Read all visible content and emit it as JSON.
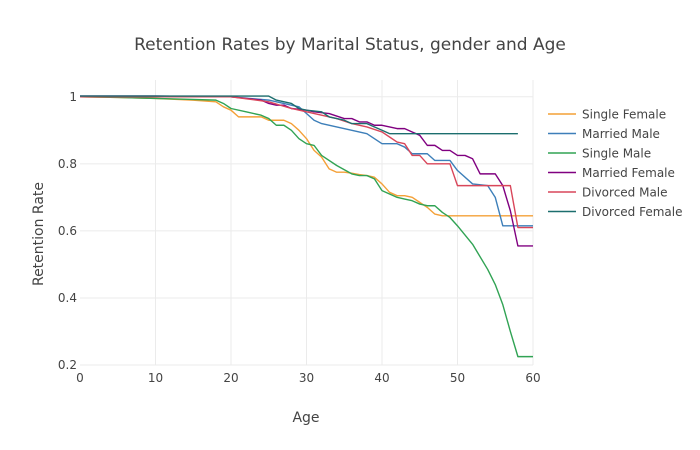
{
  "chart_data": {
    "type": "line",
    "title": "Retention Rates by Marital Status, gender and Age",
    "xlabel": "Age",
    "ylabel": "Retention Rate",
    "xlim": [
      0,
      60
    ],
    "ylim": [
      0.2,
      1.05
    ],
    "xticks": [
      0,
      10,
      20,
      30,
      40,
      50,
      60
    ],
    "yticks": [
      0.2,
      0.4,
      0.6,
      0.8,
      1
    ],
    "ytick_labels": [
      "0.2",
      "0.4",
      "0.6",
      "0.8",
      "1"
    ],
    "grid": true,
    "legend_position": "right",
    "series": [
      {
        "name": "Single Female",
        "color": "#f4a037",
        "points": [
          [
            0,
            1.0
          ],
          [
            5,
            0.998
          ],
          [
            10,
            0.995
          ],
          [
            15,
            0.99
          ],
          [
            18,
            0.985
          ],
          [
            19,
            0.97
          ],
          [
            20,
            0.96
          ],
          [
            21,
            0.94
          ],
          [
            24,
            0.94
          ],
          [
            25,
            0.93
          ],
          [
            27,
            0.93
          ],
          [
            28,
            0.92
          ],
          [
            29,
            0.9
          ],
          [
            30,
            0.875
          ],
          [
            31,
            0.84
          ],
          [
            32,
            0.82
          ],
          [
            33,
            0.785
          ],
          [
            34,
            0.775
          ],
          [
            35,
            0.775
          ],
          [
            36,
            0.772
          ],
          [
            37,
            0.768
          ],
          [
            38,
            0.765
          ],
          [
            39,
            0.76
          ],
          [
            40,
            0.74
          ],
          [
            41,
            0.715
          ],
          [
            42,
            0.705
          ],
          [
            43,
            0.705
          ],
          [
            44,
            0.7
          ],
          [
            45,
            0.685
          ],
          [
            46,
            0.67
          ],
          [
            47,
            0.65
          ],
          [
            48,
            0.645
          ],
          [
            50,
            0.645
          ],
          [
            55,
            0.645
          ],
          [
            60,
            0.645
          ]
        ]
      },
      {
        "name": "Married Male",
        "color": "#3d7fb9",
        "points": [
          [
            0,
            1.002
          ],
          [
            10,
            1.002
          ],
          [
            20,
            1.0
          ],
          [
            25,
            0.99
          ],
          [
            28,
            0.975
          ],
          [
            29,
            0.97
          ],
          [
            30,
            0.95
          ],
          [
            31,
            0.93
          ],
          [
            32,
            0.92
          ],
          [
            34,
            0.91
          ],
          [
            36,
            0.9
          ],
          [
            38,
            0.89
          ],
          [
            39,
            0.875
          ],
          [
            40,
            0.86
          ],
          [
            42,
            0.86
          ],
          [
            43,
            0.85
          ],
          [
            44,
            0.83
          ],
          [
            46,
            0.83
          ],
          [
            47,
            0.81
          ],
          [
            49,
            0.81
          ],
          [
            50,
            0.78
          ],
          [
            52,
            0.74
          ],
          [
            54,
            0.735
          ],
          [
            55,
            0.7
          ],
          [
            56,
            0.615
          ],
          [
            58,
            0.615
          ],
          [
            59,
            0.615
          ],
          [
            60,
            0.615
          ]
        ]
      },
      {
        "name": "Single Male",
        "color": "#31a354",
        "points": [
          [
            0,
            1.0
          ],
          [
            5,
            0.998
          ],
          [
            10,
            0.995
          ],
          [
            15,
            0.992
          ],
          [
            18,
            0.99
          ],
          [
            19,
            0.98
          ],
          [
            20,
            0.965
          ],
          [
            22,
            0.955
          ],
          [
            24,
            0.945
          ],
          [
            25,
            0.935
          ],
          [
            26,
            0.915
          ],
          [
            27,
            0.915
          ],
          [
            28,
            0.9
          ],
          [
            29,
            0.875
          ],
          [
            30,
            0.86
          ],
          [
            31,
            0.855
          ],
          [
            32,
            0.825
          ],
          [
            34,
            0.795
          ],
          [
            36,
            0.77
          ],
          [
            37,
            0.765
          ],
          [
            38,
            0.765
          ],
          [
            39,
            0.755
          ],
          [
            40,
            0.72
          ],
          [
            41,
            0.71
          ],
          [
            42,
            0.7
          ],
          [
            43,
            0.695
          ],
          [
            44,
            0.69
          ],
          [
            45,
            0.68
          ],
          [
            46,
            0.675
          ],
          [
            47,
            0.675
          ],
          [
            48,
            0.655
          ],
          [
            49,
            0.64
          ],
          [
            50,
            0.615
          ],
          [
            52,
            0.56
          ],
          [
            54,
            0.485
          ],
          [
            55,
            0.44
          ],
          [
            56,
            0.38
          ],
          [
            57,
            0.3
          ],
          [
            58,
            0.225
          ],
          [
            59,
            0.225
          ],
          [
            60,
            0.225
          ]
        ]
      },
      {
        "name": "Married Female",
        "color": "#800080",
        "points": [
          [
            0,
            1.002
          ],
          [
            10,
            1.002
          ],
          [
            20,
            1.0
          ],
          [
            22,
            0.995
          ],
          [
            24,
            0.99
          ],
          [
            25,
            0.98
          ],
          [
            26,
            0.975
          ],
          [
            27,
            0.975
          ],
          [
            28,
            0.965
          ],
          [
            30,
            0.96
          ],
          [
            31,
            0.955
          ],
          [
            33,
            0.95
          ],
          [
            35,
            0.935
          ],
          [
            36,
            0.935
          ],
          [
            37,
            0.925
          ],
          [
            38,
            0.925
          ],
          [
            39,
            0.915
          ],
          [
            40,
            0.915
          ],
          [
            41,
            0.91
          ],
          [
            42,
            0.905
          ],
          [
            43,
            0.905
          ],
          [
            44,
            0.895
          ],
          [
            45,
            0.885
          ],
          [
            46,
            0.855
          ],
          [
            47,
            0.855
          ],
          [
            48,
            0.84
          ],
          [
            49,
            0.84
          ],
          [
            50,
            0.825
          ],
          [
            51,
            0.825
          ],
          [
            52,
            0.815
          ],
          [
            53,
            0.77
          ],
          [
            55,
            0.77
          ],
          [
            56,
            0.735
          ],
          [
            57,
            0.66
          ],
          [
            58,
            0.555
          ],
          [
            59,
            0.555
          ],
          [
            60,
            0.555
          ]
        ]
      },
      {
        "name": "Divorced Male",
        "color": "#d9465a",
        "points": [
          [
            0,
            1.0
          ],
          [
            10,
            1.0
          ],
          [
            20,
            1.0
          ],
          [
            25,
            0.985
          ],
          [
            28,
            0.965
          ],
          [
            30,
            0.955
          ],
          [
            32,
            0.945
          ],
          [
            34,
            0.935
          ],
          [
            36,
            0.92
          ],
          [
            38,
            0.91
          ],
          [
            40,
            0.895
          ],
          [
            41,
            0.88
          ],
          [
            42,
            0.865
          ],
          [
            43,
            0.86
          ],
          [
            44,
            0.825
          ],
          [
            45,
            0.825
          ],
          [
            46,
            0.8
          ],
          [
            47,
            0.8
          ],
          [
            48,
            0.8
          ],
          [
            49,
            0.8
          ],
          [
            50,
            0.735
          ],
          [
            52,
            0.735
          ],
          [
            57,
            0.735
          ],
          [
            58,
            0.61
          ],
          [
            60,
            0.61
          ]
        ]
      },
      {
        "name": "Divorced Female",
        "color": "#1c6e6e",
        "points": [
          [
            0,
            1.002
          ],
          [
            10,
            1.002
          ],
          [
            20,
            1.002
          ],
          [
            25,
            1.002
          ],
          [
            26,
            0.99
          ],
          [
            28,
            0.98
          ],
          [
            29,
            0.965
          ],
          [
            30,
            0.96
          ],
          [
            32,
            0.955
          ],
          [
            33,
            0.94
          ],
          [
            35,
            0.93
          ],
          [
            36,
            0.92
          ],
          [
            38,
            0.92
          ],
          [
            40,
            0.9
          ],
          [
            41,
            0.89
          ],
          [
            45,
            0.89
          ],
          [
            50,
            0.89
          ],
          [
            55,
            0.89
          ],
          [
            58,
            0.89
          ]
        ]
      }
    ]
  }
}
